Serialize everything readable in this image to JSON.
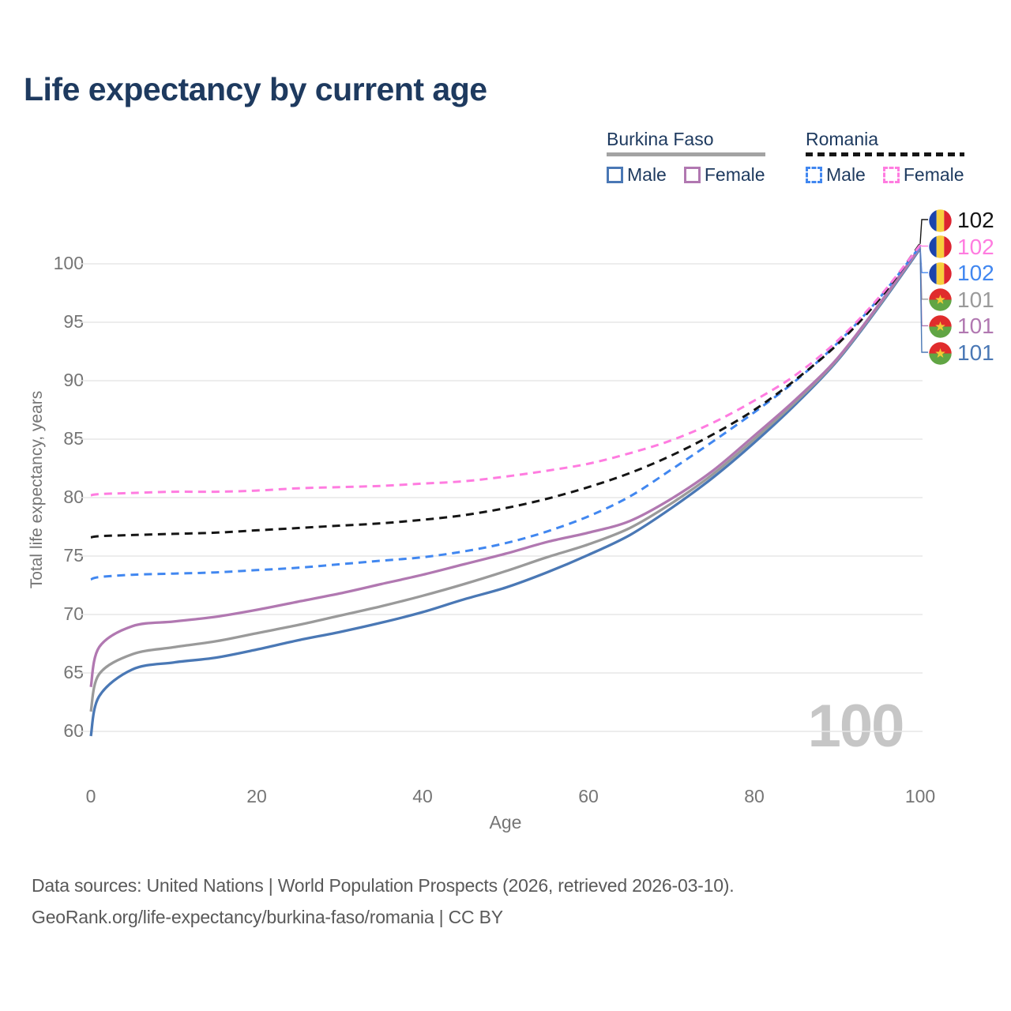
{
  "title": "Life expectancy by current age",
  "watermark": "100",
  "legend": {
    "group1": {
      "label": "Burkina Faso",
      "style": "solid",
      "items": [
        {
          "label": "Male",
          "color": "#4a78b5"
        },
        {
          "label": "Female",
          "color": "#b178b1"
        }
      ]
    },
    "group2": {
      "label": "Romania",
      "style": "dashed",
      "items": [
        {
          "label": "Male",
          "color": "#4187f0"
        },
        {
          "label": "Female",
          "color": "#ff7ce0"
        }
      ]
    }
  },
  "y_axis": {
    "title": "Total life expectancy, years",
    "ticks": [
      60,
      65,
      70,
      75,
      80,
      85,
      90,
      95,
      100
    ]
  },
  "x_axis": {
    "title": "Age",
    "ticks": [
      0,
      20,
      40,
      60,
      80,
      100
    ]
  },
  "end_labels": [
    {
      "value": "102",
      "country": "romania",
      "series_key": "ro_total",
      "color": "#151515"
    },
    {
      "value": "102",
      "country": "romania",
      "series_key": "ro_female",
      "color": "#ff7ce0"
    },
    {
      "value": "102",
      "country": "romania",
      "series_key": "ro_male",
      "color": "#4187f0"
    },
    {
      "value": "101",
      "country": "burkina-faso",
      "series_key": "bf_total",
      "color": "#9a9a9a"
    },
    {
      "value": "101",
      "country": "burkina-faso",
      "series_key": "bf_female",
      "color": "#b178b1"
    },
    {
      "value": "101",
      "country": "burkina-faso",
      "series_key": "bf_male",
      "color": "#4a78b5"
    }
  ],
  "flags": {
    "romania": {
      "blue": "#1b44ac",
      "yellow": "#f7cf3d",
      "red": "#dc2430"
    },
    "burkina-faso": {
      "red": "#e02c2c",
      "green": "#61a544",
      "star": "#f2ca36"
    }
  },
  "footer": {
    "line1": "Data sources: United Nations | World Population Prospects (2026, retrieved 2026-03-10).",
    "line2": "GeoRank.org/life-expectancy/burkina-faso/romania | CC BY"
  },
  "chart_data": {
    "type": "line",
    "title": "Life expectancy by current age",
    "xlabel": "Age",
    "ylabel": "Total life expectancy, years",
    "xlim": [
      0,
      100
    ],
    "ylim": [
      57.5,
      103.5
    ],
    "grid": "horizontal",
    "x": [
      0,
      1,
      5,
      10,
      15,
      20,
      25,
      30,
      35,
      40,
      45,
      50,
      55,
      60,
      65,
      70,
      75,
      80,
      85,
      90,
      95,
      100
    ],
    "series": [
      {
        "key": "bf_male",
        "name": "Burkina Faso Male",
        "color": "#4a78b5",
        "dash": false,
        "values": [
          59.6,
          63.0,
          65.3,
          65.9,
          66.3,
          67.0,
          67.8,
          68.5,
          69.3,
          70.2,
          71.3,
          72.3,
          73.6,
          75.1,
          76.8,
          79.1,
          81.7,
          84.7,
          88.0,
          91.7,
          96.3,
          101.3
        ]
      },
      {
        "key": "bf_total",
        "name": "Burkina Faso Total",
        "color": "#9a9a9a",
        "dash": false,
        "values": [
          61.7,
          64.9,
          66.6,
          67.2,
          67.7,
          68.4,
          69.1,
          69.9,
          70.7,
          71.6,
          72.6,
          73.7,
          74.9,
          76.0,
          77.4,
          79.5,
          82.0,
          85.0,
          88.2,
          91.8,
          96.4,
          101.4
        ]
      },
      {
        "key": "bf_female",
        "name": "Burkina Faso Female",
        "color": "#b178b1",
        "dash": false,
        "values": [
          63.8,
          67.2,
          69.0,
          69.4,
          69.8,
          70.4,
          71.1,
          71.8,
          72.6,
          73.4,
          74.3,
          75.2,
          76.2,
          77.0,
          78.0,
          79.9,
          82.3,
          85.3,
          88.4,
          91.9,
          96.5,
          101.45
        ]
      },
      {
        "key": "ro_male",
        "name": "Romania Male",
        "color": "#4187f0",
        "dash": true,
        "values": [
          73.0,
          73.2,
          73.4,
          73.5,
          73.6,
          73.8,
          74.0,
          74.3,
          74.6,
          74.9,
          75.4,
          76.1,
          77.1,
          78.4,
          80.1,
          82.4,
          84.8,
          87.3,
          90.0,
          93.2,
          97.0,
          101.5
        ]
      },
      {
        "key": "ro_total",
        "name": "Romania Total",
        "color": "#151515",
        "dash": true,
        "values": [
          76.6,
          76.7,
          76.8,
          76.9,
          77.0,
          77.2,
          77.4,
          77.6,
          77.8,
          78.1,
          78.5,
          79.1,
          79.9,
          80.9,
          82.1,
          83.6,
          85.4,
          87.5,
          90.1,
          93.1,
          96.9,
          101.7
        ]
      },
      {
        "key": "ro_female",
        "name": "Romania Female",
        "color": "#ff7ce0",
        "dash": true,
        "values": [
          80.2,
          80.3,
          80.4,
          80.5,
          80.5,
          80.6,
          80.8,
          80.9,
          81.0,
          81.2,
          81.4,
          81.8,
          82.3,
          82.9,
          83.8,
          84.9,
          86.4,
          88.3,
          90.5,
          93.4,
          97.1,
          101.6
        ]
      }
    ],
    "legend_position": "top-right"
  }
}
